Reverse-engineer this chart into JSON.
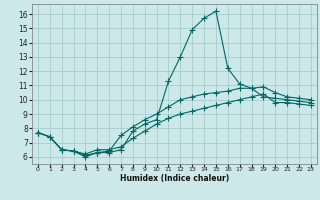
{
  "xlabel": "Humidex (Indice chaleur)",
  "bg_color": "#cce8e8",
  "grid_color": "#aacccc",
  "line_color": "#006868",
  "xlim": [
    -0.5,
    23.5
  ],
  "ylim": [
    5.5,
    16.7
  ],
  "yticks": [
    6,
    7,
    8,
    9,
    10,
    11,
    12,
    13,
    14,
    15,
    16
  ],
  "xticks": [
    0,
    1,
    2,
    3,
    4,
    5,
    6,
    7,
    8,
    9,
    10,
    11,
    12,
    13,
    14,
    15,
    16,
    17,
    18,
    19,
    20,
    21,
    22,
    23
  ],
  "curve1_x": [
    0,
    1,
    2,
    3,
    4,
    5,
    6,
    7,
    8,
    9,
    10,
    11,
    12,
    13,
    14,
    15,
    16,
    17,
    18,
    19,
    20,
    21,
    22,
    23
  ],
  "curve1_y": [
    7.7,
    7.4,
    6.5,
    6.4,
    6.0,
    6.3,
    6.3,
    6.5,
    7.8,
    8.3,
    8.6,
    11.3,
    13.0,
    14.9,
    15.7,
    16.2,
    12.2,
    11.1,
    10.8,
    10.2,
    10.1,
    10.0,
    9.9,
    9.8
  ],
  "curve2_x": [
    0,
    1,
    2,
    3,
    4,
    5,
    6,
    7,
    8,
    9,
    10,
    11,
    12,
    13,
    14,
    15,
    16,
    17,
    18,
    19,
    20,
    21,
    22,
    23
  ],
  "curve2_y": [
    7.7,
    7.4,
    6.5,
    6.4,
    6.1,
    6.3,
    6.4,
    7.5,
    8.1,
    8.6,
    9.0,
    9.5,
    10.0,
    10.2,
    10.4,
    10.5,
    10.6,
    10.8,
    10.8,
    10.9,
    10.5,
    10.2,
    10.1,
    10.0
  ],
  "curve3_x": [
    0,
    1,
    2,
    3,
    4,
    5,
    6,
    7,
    8,
    9,
    10,
    11,
    12,
    13,
    14,
    15,
    16,
    17,
    18,
    19,
    20,
    21,
    22,
    23
  ],
  "curve3_y": [
    7.7,
    7.4,
    6.5,
    6.4,
    6.2,
    6.5,
    6.5,
    6.7,
    7.3,
    7.8,
    8.3,
    8.7,
    9.0,
    9.2,
    9.4,
    9.6,
    9.8,
    10.0,
    10.2,
    10.4,
    9.8,
    9.8,
    9.7,
    9.6
  ]
}
